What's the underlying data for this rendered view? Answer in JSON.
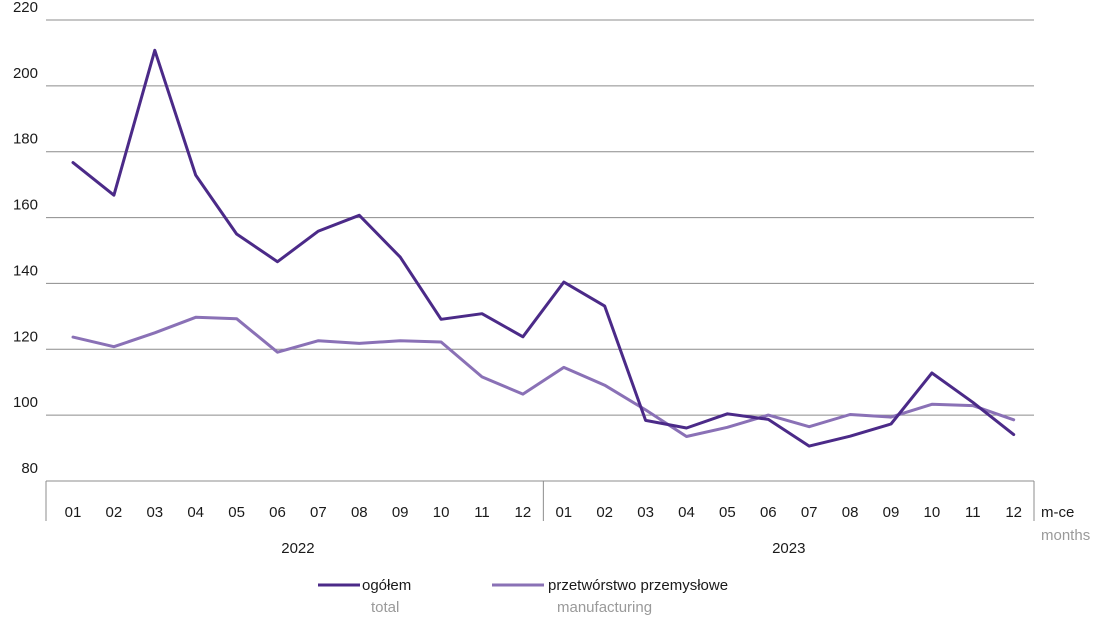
{
  "chart_data": {
    "type": "line",
    "title": "",
    "xlabel": "m-ce",
    "xlabel_secondary": "months",
    "ylabel": "",
    "ylim": [
      80,
      220
    ],
    "yticks": [
      80,
      100,
      120,
      140,
      160,
      180,
      200,
      220
    ],
    "grid": true,
    "legend_position": "bottom",
    "groups": [
      {
        "label": "2022",
        "categories": [
          "01",
          "02",
          "03",
          "04",
          "05",
          "06",
          "07",
          "08",
          "09",
          "10",
          "11",
          "12"
        ]
      },
      {
        "label": "2023",
        "categories": [
          "01",
          "02",
          "03",
          "04",
          "05",
          "06",
          "07",
          "08",
          "09",
          "10",
          "11",
          "12"
        ]
      }
    ],
    "categories": [
      "01",
      "02",
      "03",
      "04",
      "05",
      "06",
      "07",
      "08",
      "09",
      "10",
      "11",
      "12",
      "01",
      "02",
      "03",
      "04",
      "05",
      "06",
      "07",
      "08",
      "09",
      "10",
      "11",
      "12"
    ],
    "series": [
      {
        "name": "ogółem",
        "name_secondary": "total",
        "color": "#4b2a88",
        "values": [
          176.7,
          166.8,
          210.8,
          172.9,
          155.0,
          146.6,
          155.9,
          160.7,
          148.0,
          129.1,
          130.8,
          123.8,
          140.4,
          133.1,
          98.4,
          96.1,
          100.4,
          98.7,
          90.6,
          93.6,
          97.3,
          112.8,
          103.9,
          94.1
        ]
      },
      {
        "name": "przetwórstwo przemysłowe",
        "name_secondary": "manufacturing",
        "color": "#8a71b6",
        "values": [
          123.7,
          120.8,
          125.0,
          129.7,
          129.3,
          119.1,
          122.6,
          121.8,
          122.6,
          122.2,
          111.6,
          106.4,
          114.5,
          109.1,
          101.6,
          93.5,
          96.3,
          100.0,
          96.5,
          100.2,
          99.4,
          103.3,
          102.9,
          98.6
        ]
      }
    ]
  }
}
